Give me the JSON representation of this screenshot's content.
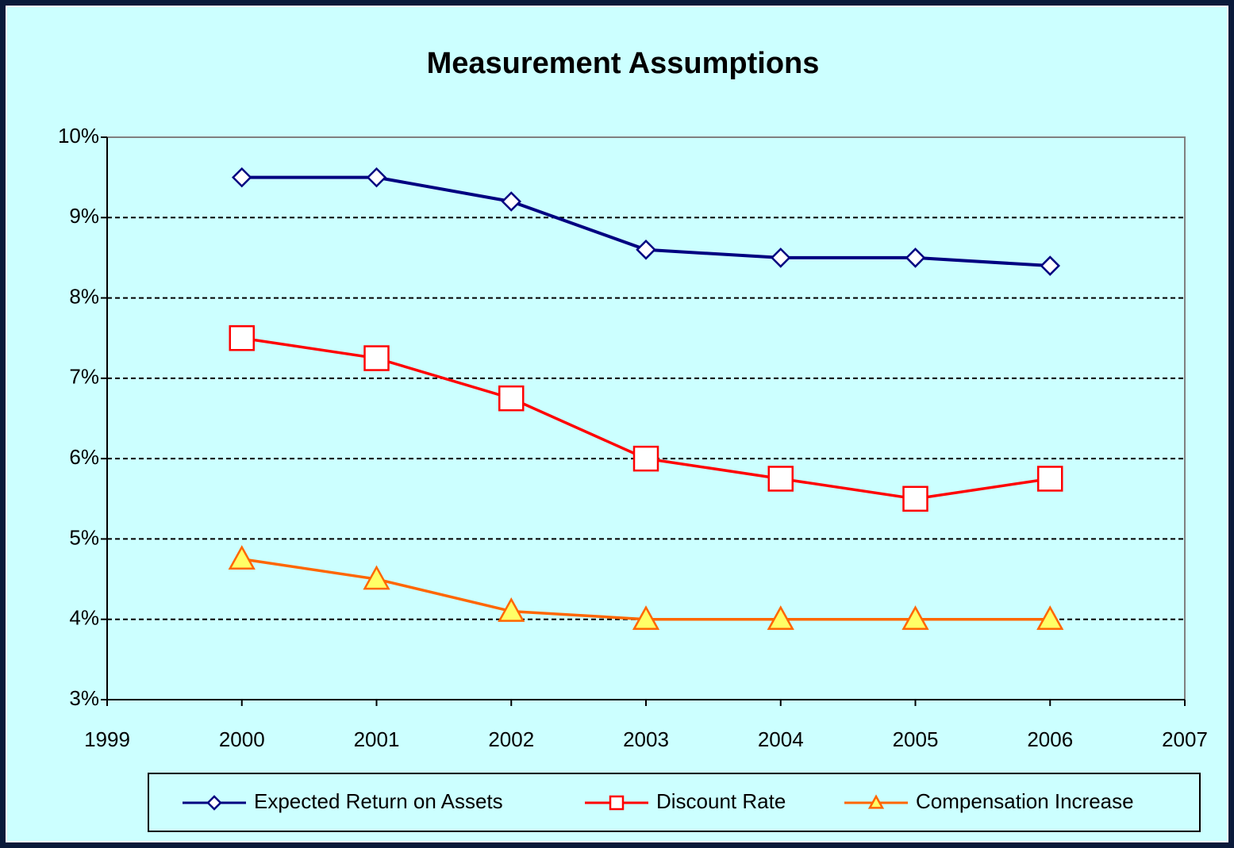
{
  "chart_data": {
    "type": "line",
    "title": "Measurement Assumptions",
    "x": [
      2000,
      2001,
      2002,
      2003,
      2004,
      2005,
      2006
    ],
    "series": [
      {
        "name": "Expected Return on Assets",
        "color": "#000080",
        "marker": "diamond",
        "marker_fill": "#ffffff",
        "marker_stroke": "#000080",
        "values": [
          9.5,
          9.5,
          9.2,
          8.6,
          8.5,
          8.5,
          8.4
        ]
      },
      {
        "name": "Discount Rate",
        "color": "#ff0000",
        "marker": "square",
        "marker_fill": "#ffffff",
        "marker_stroke": "#ff0000",
        "values": [
          7.5,
          7.25,
          6.75,
          6.0,
          5.75,
          5.5,
          5.75
        ]
      },
      {
        "name": "Compensation Increase",
        "color": "#ff6600",
        "marker": "triangle",
        "marker_fill": "#ffff66",
        "marker_stroke": "#ff6600",
        "values": [
          4.75,
          4.5,
          4.1,
          4,
          4,
          4,
          4
        ]
      }
    ],
    "xlim": [
      1999,
      2007
    ],
    "xticks": [
      1999,
      2000,
      2001,
      2002,
      2003,
      2004,
      2005,
      2006,
      2007
    ],
    "ylim": [
      3,
      10
    ],
    "yticks": [
      {
        "value": 3,
        "label": "3%"
      },
      {
        "value": 4,
        "label": "4%"
      },
      {
        "value": 5,
        "label": "5%"
      },
      {
        "value": 6,
        "label": "6%"
      },
      {
        "value": 7,
        "label": "7%"
      },
      {
        "value": 8,
        "label": "8%"
      },
      {
        "value": 9,
        "label": "9%"
      },
      {
        "value": 10,
        "label": "10%"
      }
    ],
    "grid": true,
    "legend": "bottom"
  }
}
